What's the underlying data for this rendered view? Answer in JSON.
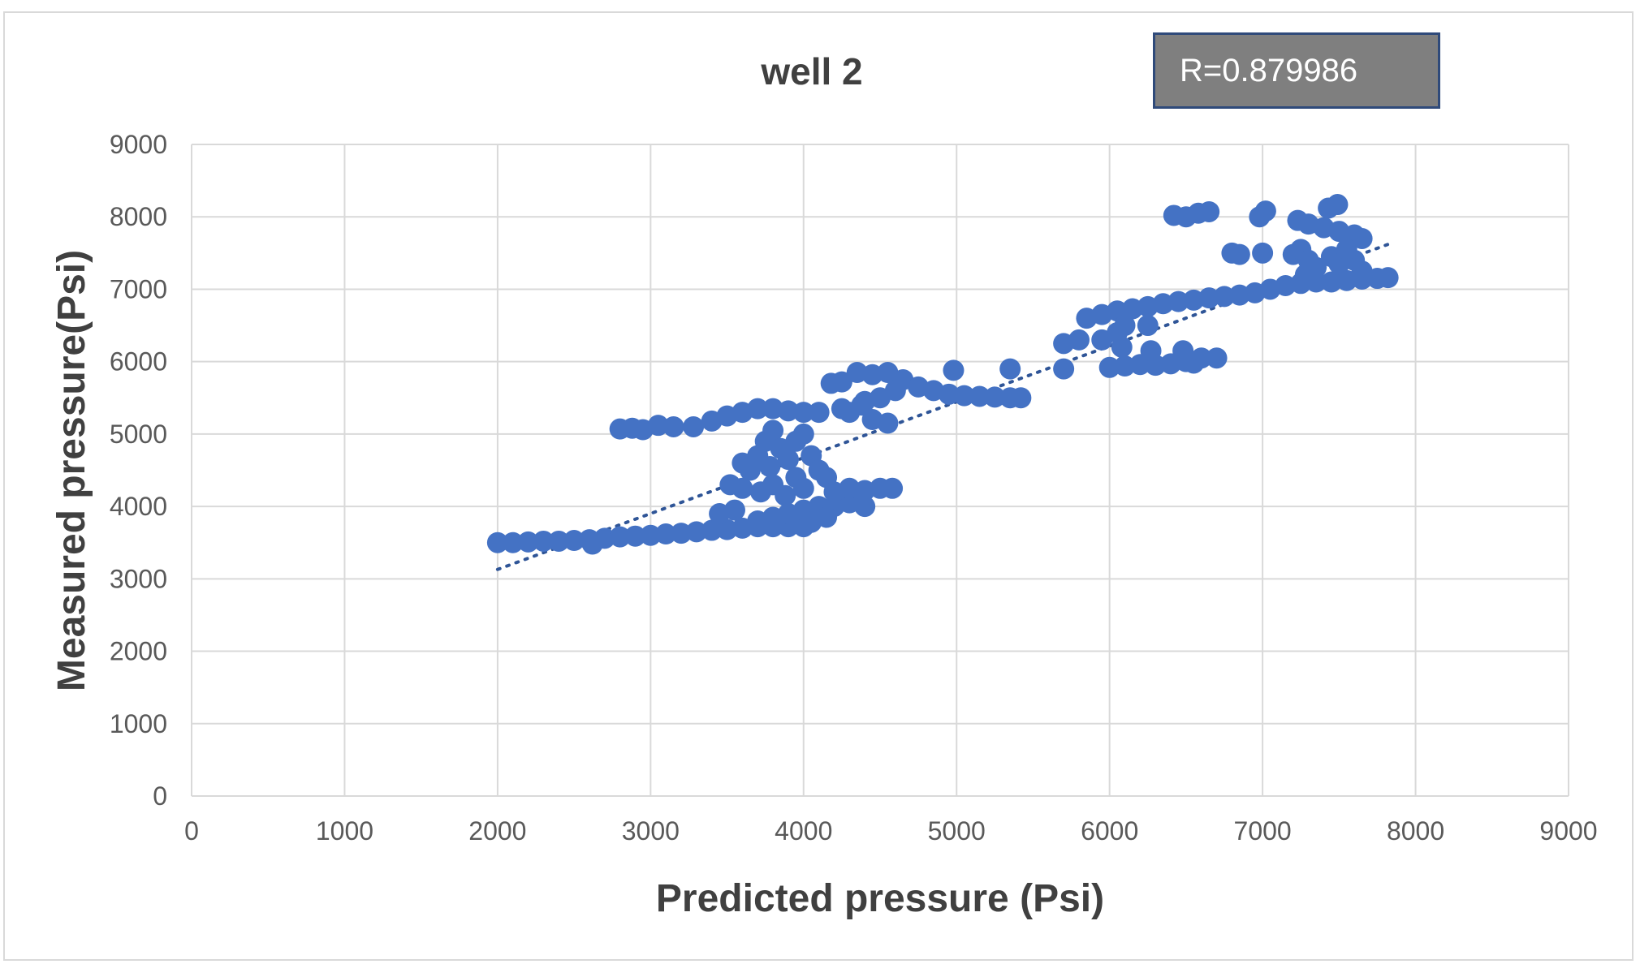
{
  "chart_data": {
    "type": "scatter",
    "title": "well 2",
    "xlabel": "Predicted pressure (Psi)",
    "ylabel": "Measured pressure(Psi)",
    "xlim": [
      0,
      9000
    ],
    "ylim": [
      0,
      9000
    ],
    "x_ticks": [
      0,
      1000,
      2000,
      3000,
      4000,
      5000,
      6000,
      7000,
      8000,
      9000
    ],
    "y_ticks": [
      0,
      1000,
      2000,
      3000,
      4000,
      5000,
      6000,
      7000,
      8000,
      9000
    ],
    "grid": true,
    "legend": "none",
    "annotation": "R=0.879986",
    "trendline": {
      "style": "dotted linear",
      "x": [
        2000,
        7820
      ],
      "y": [
        3130,
        7620
      ]
    },
    "colors": {
      "points": "#4472c4",
      "trendline": "#2f5597",
      "grid": "#d9d9d9",
      "annotation_bg": "#7f7f7f",
      "annotation_border": "#2f4a7a"
    },
    "series": [
      {
        "points": [
          [
            2000,
            3500
          ],
          [
            2100,
            3500
          ],
          [
            2200,
            3510
          ],
          [
            2300,
            3520
          ],
          [
            2400,
            3520
          ],
          [
            2500,
            3530
          ],
          [
            2600,
            3540
          ],
          [
            2620,
            3480
          ],
          [
            2700,
            3560
          ],
          [
            2800,
            3580
          ],
          [
            2900,
            3590
          ],
          [
            3000,
            3600
          ],
          [
            3100,
            3620
          ],
          [
            3200,
            3630
          ],
          [
            3300,
            3650
          ],
          [
            3400,
            3670
          ],
          [
            3500,
            3680
          ],
          [
            3600,
            3700
          ],
          [
            3700,
            3720
          ],
          [
            3800,
            3720
          ],
          [
            3900,
            3720
          ],
          [
            4000,
            3720
          ],
          [
            3450,
            3900
          ],
          [
            3550,
            3950
          ],
          [
            2800,
            5070
          ],
          [
            2880,
            5080
          ],
          [
            2950,
            5060
          ],
          [
            3050,
            5120
          ],
          [
            3150,
            5100
          ],
          [
            3280,
            5100
          ],
          [
            3400,
            5180
          ],
          [
            3500,
            5250
          ],
          [
            3600,
            5300
          ],
          [
            3700,
            5350
          ],
          [
            3800,
            5350
          ],
          [
            3900,
            5320
          ],
          [
            4000,
            5300
          ],
          [
            4100,
            5300
          ],
          [
            4250,
            5350
          ],
          [
            4300,
            5300
          ],
          [
            3600,
            4600
          ],
          [
            3650,
            4500
          ],
          [
            3700,
            4700
          ],
          [
            3750,
            4900
          ],
          [
            3800,
            5050
          ],
          [
            3850,
            4800
          ],
          [
            3900,
            4650
          ],
          [
            3950,
            4900
          ],
          [
            4000,
            5000
          ],
          [
            4050,
            4700
          ],
          [
            4100,
            4500
          ],
          [
            4150,
            4400
          ],
          [
            3720,
            4200
          ],
          [
            3800,
            4300
          ],
          [
            3880,
            4150
          ],
          [
            3950,
            4400
          ],
          [
            4000,
            4250
          ],
          [
            3600,
            4250
          ],
          [
            3520,
            4300
          ],
          [
            3780,
            4550
          ],
          [
            3700,
            3800
          ],
          [
            3800,
            3850
          ],
          [
            3900,
            3900
          ],
          [
            4000,
            3950
          ],
          [
            4100,
            4000
          ],
          [
            4200,
            4000
          ],
          [
            4300,
            4050
          ],
          [
            4400,
            4000
          ],
          [
            4200,
            4200
          ],
          [
            4300,
            4250
          ],
          [
            4400,
            4220
          ],
          [
            4500,
            4250
          ],
          [
            4580,
            4250
          ],
          [
            4150,
            3850
          ],
          [
            4050,
            3780
          ],
          [
            4180,
            5700
          ],
          [
            4250,
            5720
          ],
          [
            4350,
            5850
          ],
          [
            4450,
            5820
          ],
          [
            4550,
            5850
          ],
          [
            4650,
            5750
          ],
          [
            4750,
            5650
          ],
          [
            4850,
            5600
          ],
          [
            4950,
            5550
          ],
          [
            5050,
            5530
          ],
          [
            5150,
            5520
          ],
          [
            5250,
            5510
          ],
          [
            5350,
            5500
          ],
          [
            5420,
            5500
          ],
          [
            4600,
            5600
          ],
          [
            4500,
            5500
          ],
          [
            4400,
            5450
          ],
          [
            4450,
            5200
          ],
          [
            4550,
            5150
          ],
          [
            5350,
            5900
          ],
          [
            4980,
            5880
          ],
          [
            4380,
            5400
          ],
          [
            5700,
            5900
          ],
          [
            5700,
            6250
          ],
          [
            5800,
            6300
          ],
          [
            5850,
            6600
          ],
          [
            5950,
            6650
          ],
          [
            6050,
            6700
          ],
          [
            6150,
            6730
          ],
          [
            6250,
            6760
          ],
          [
            6350,
            6800
          ],
          [
            6450,
            6830
          ],
          [
            6550,
            6850
          ],
          [
            6650,
            6880
          ],
          [
            6750,
            6900
          ],
          [
            6850,
            6920
          ],
          [
            6950,
            6950
          ],
          [
            7050,
            7000
          ],
          [
            7150,
            7050
          ],
          [
            7250,
            7080
          ],
          [
            7350,
            7100
          ],
          [
            7450,
            7100
          ],
          [
            7550,
            7120
          ],
          [
            7650,
            7140
          ],
          [
            7750,
            7150
          ],
          [
            7820,
            7160
          ],
          [
            6100,
            6500
          ],
          [
            6250,
            6500
          ],
          [
            5950,
            6300
          ],
          [
            6050,
            6400
          ],
          [
            6000,
            5920
          ],
          [
            6100,
            5940
          ],
          [
            6200,
            5960
          ],
          [
            6300,
            5950
          ],
          [
            6400,
            5970
          ],
          [
            6500,
            6000
          ],
          [
            6600,
            6050
          ],
          [
            6700,
            6050
          ],
          [
            6270,
            6150
          ],
          [
            6480,
            6150
          ],
          [
            6550,
            5980
          ],
          [
            6080,
            6200
          ],
          [
            6420,
            8020
          ],
          [
            6500,
            8000
          ],
          [
            6580,
            8050
          ],
          [
            6650,
            8070
          ],
          [
            6980,
            8000
          ],
          [
            7020,
            8080
          ],
          [
            7230,
            7950
          ],
          [
            7300,
            7900
          ],
          [
            7400,
            7850
          ],
          [
            7500,
            7800
          ],
          [
            7600,
            7750
          ],
          [
            7650,
            7700
          ],
          [
            7430,
            8120
          ],
          [
            7490,
            8170
          ],
          [
            6800,
            7500
          ],
          [
            6850,
            7480
          ],
          [
            7000,
            7500
          ],
          [
            7200,
            7480
          ],
          [
            7250,
            7550
          ],
          [
            7300,
            7400
          ],
          [
            7350,
            7300
          ],
          [
            7450,
            7450
          ],
          [
            7500,
            7350
          ],
          [
            7600,
            7400
          ],
          [
            7650,
            7250
          ],
          [
            7550,
            7550
          ],
          [
            7280,
            7200
          ]
        ]
      }
    ]
  }
}
